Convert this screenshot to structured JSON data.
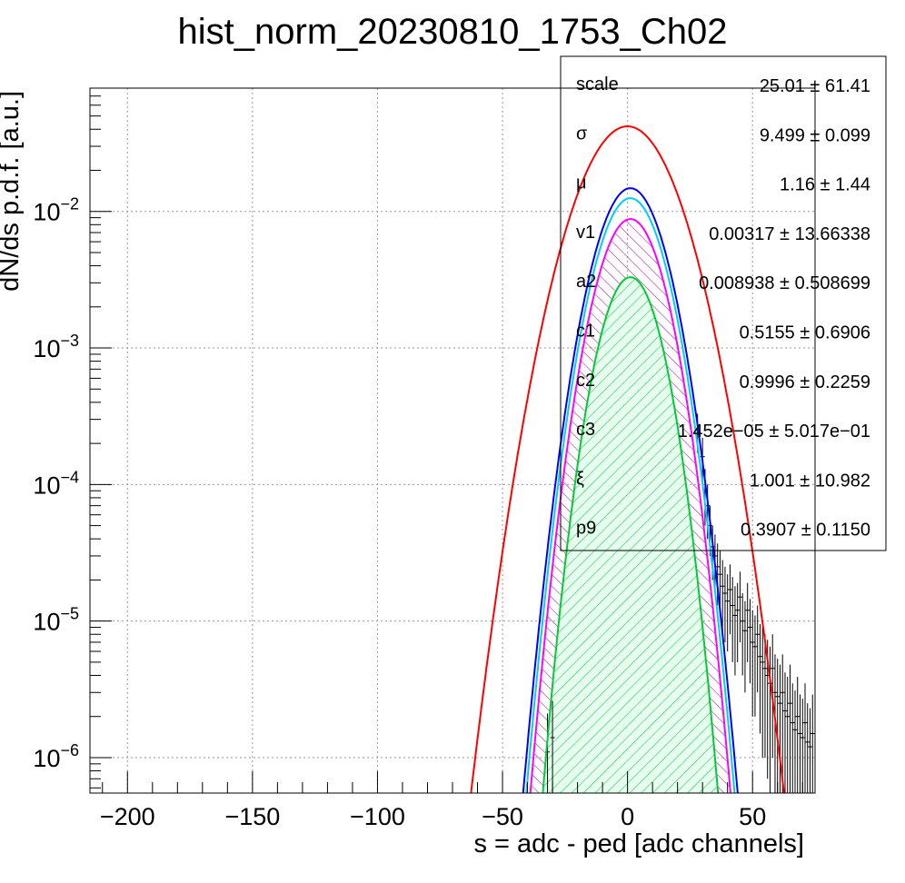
{
  "chart_data": {
    "type": "line",
    "title": "hist_norm_20230810_1753_Ch02",
    "xlabel": "s = adc - ped [adc channels]",
    "ylabel": "dN/ds p.d.f. [a.u.]",
    "xlim": [
      -215,
      75
    ],
    "ylim": [
      5.5e-07,
      0.08
    ],
    "yscale": "log",
    "grid": true,
    "x_ticks": [
      -200,
      -150,
      -100,
      -50,
      0,
      50
    ],
    "x_tick_labels": [
      "−200",
      "−150",
      "−100",
      "−50",
      "0",
      "50"
    ],
    "y_ticks": [
      {
        "value": 1e-06,
        "base": "10",
        "exp": "−6"
      },
      {
        "value": 1e-05,
        "base": "10",
        "exp": "−5"
      },
      {
        "value": 0.0001,
        "base": "10",
        "exp": "−4"
      },
      {
        "value": 0.001,
        "base": "10",
        "exp": "−3"
      },
      {
        "value": 0.01,
        "base": "10",
        "exp": "−2"
      }
    ],
    "curves": [
      {
        "color": "#ff0000",
        "peak": 0.042,
        "mu": 0,
        "sigma": 13.2,
        "fill": "none"
      },
      {
        "color": "#0000ff",
        "peak": 0.0148,
        "mu": 1.16,
        "sigma": 9.5,
        "fill": "none"
      },
      {
        "color": "#00ccff",
        "peak": 0.0125,
        "mu": 1.16,
        "sigma": 9.3,
        "fill": "none"
      },
      {
        "color": "#ff00ff",
        "peak": 0.0088,
        "mu": 1.16,
        "sigma": 9.1,
        "fill": "magenta-hatch"
      },
      {
        "color": "#00cc33",
        "peak": 0.0033,
        "mu": 1.16,
        "sigma": 8.4,
        "fill": "green-hatch"
      }
    ],
    "data_points": [
      {
        "x": 28,
        "y": 0.00025,
        "err": 8e-05
      },
      {
        "x": 30,
        "y": 0.00016,
        "err": 6e-05
      },
      {
        "x": 31,
        "y": 9e-05,
        "err": 4e-05
      },
      {
        "x": 32,
        "y": 7e-05,
        "err": 3e-05
      },
      {
        "x": 33,
        "y": 5e-05,
        "err": 2e-05
      },
      {
        "x": 34,
        "y": 3.5e-05,
        "err": 1.5e-05
      },
      {
        "x": 35,
        "y": 3e-05,
        "err": 1.3e-05
      },
      {
        "x": 36,
        "y": 2.5e-05,
        "err": 1.2e-05
      },
      {
        "x": 37,
        "y": 2.2e-05,
        "err": 1.1e-05
      },
      {
        "x": 38,
        "y": 1.8e-05,
        "err": 1e-05
      },
      {
        "x": 39,
        "y": 1.6e-05,
        "err": 9e-06
      },
      {
        "x": 40,
        "y": 1.4e-05,
        "err": 8e-06
      },
      {
        "x": 41,
        "y": 1.7e-05,
        "err": 9e-06
      },
      {
        "x": 42,
        "y": 1.3e-05,
        "err": 8e-06
      },
      {
        "x": 43,
        "y": 1.1e-05,
        "err": 7e-06
      },
      {
        "x": 44,
        "y": 1.2e-05,
        "err": 7e-06
      },
      {
        "x": 45,
        "y": 1.5e-05,
        "err": 8e-06
      },
      {
        "x": 46,
        "y": 1e-05,
        "err": 6e-06
      },
      {
        "x": 47,
        "y": 8.5e-06,
        "err": 5.5e-06
      },
      {
        "x": 48,
        "y": 1.2e-05,
        "err": 7e-06
      },
      {
        "x": 49,
        "y": 9e-06,
        "err": 5.5e-06
      },
      {
        "x": 50,
        "y": 7e-06,
        "err": 5e-06
      },
      {
        "x": 51,
        "y": 6.5e-06,
        "err": 4.5e-06
      },
      {
        "x": 52,
        "y": 8e-06,
        "err": 5e-06
      },
      {
        "x": 53,
        "y": 5.5e-06,
        "err": 4e-06
      },
      {
        "x": 54,
        "y": 5e-06,
        "err": 4e-06
      },
      {
        "x": 55,
        "y": 4.5e-06,
        "err": 3.5e-06
      },
      {
        "x": 56,
        "y": 4e-06,
        "err": 3.3e-06
      },
      {
        "x": 57,
        "y": 3.5e-06,
        "err": 3e-06
      },
      {
        "x": 58,
        "y": 4.5e-06,
        "err": 3.5e-06
      },
      {
        "x": 59,
        "y": 3e-06,
        "err": 2.7e-06
      },
      {
        "x": 60,
        "y": 2.8e-06,
        "err": 2.5e-06
      },
      {
        "x": 61,
        "y": 2.5e-06,
        "err": 2.3e-06
      },
      {
        "x": 62,
        "y": 3e-06,
        "err": 2.7e-06
      },
      {
        "x": 63,
        "y": 2.2e-06,
        "err": 2e-06
      },
      {
        "x": 64,
        "y": 2e-06,
        "err": 1.9e-06
      },
      {
        "x": 65,
        "y": 2.5e-06,
        "err": 2.3e-06
      },
      {
        "x": 66,
        "y": 1.8e-06,
        "err": 1.7e-06
      },
      {
        "x": 67,
        "y": 1.6e-06,
        "err": 1.5e-06
      },
      {
        "x": 68,
        "y": 2e-06,
        "err": 1.9e-06
      },
      {
        "x": 69,
        "y": 1.5e-06,
        "err": 1.4e-06
      },
      {
        "x": 70,
        "y": 1.4e-06,
        "err": 1.3e-06
      },
      {
        "x": 71,
        "y": 1.8e-06,
        "err": 1.7e-06
      },
      {
        "x": 72,
        "y": 1.3e-06,
        "err": 1.2e-06
      },
      {
        "x": 73,
        "y": 1.2e-06,
        "err": 1.1e-06
      },
      {
        "x": 74,
        "y": 1.5e-06,
        "err": 1.4e-06
      },
      {
        "x": -30,
        "y": 1.4e-06,
        "err": 1.2e-06
      },
      {
        "x": -32,
        "y": 1.1e-06,
        "err": 1e-06
      }
    ],
    "stats_box": {
      "rows": [
        {
          "name": "scale",
          "value": "25.01",
          "pm": "±",
          "err": "61.41"
        },
        {
          "name": "σ",
          "value": "9.499",
          "pm": "±",
          "err": "0.099"
        },
        {
          "name": "μ",
          "value": "1.16",
          "pm": "±",
          "err": "1.44"
        },
        {
          "name": "v1",
          "value": "0.00317",
          "pm": "±",
          "err": "13.66338"
        },
        {
          "name": "a2",
          "value": "0.008938",
          "pm": "±",
          "err": "0.508699"
        },
        {
          "name": "c1",
          "value": "0.5155",
          "pm": "±",
          "err": "0.6906"
        },
        {
          "name": "c2",
          "value": "0.9996",
          "pm": "±",
          "err": "0.2259"
        },
        {
          "name": "c3",
          "value": "1.452e−05",
          "pm": "±",
          "err": "5.017e−01"
        },
        {
          "name": "ξ",
          "value": "1.001",
          "pm": "±",
          "err": "10.982"
        },
        {
          "name": "p9",
          "value": "0.3907",
          "pm": "±",
          "err": "0.1150"
        }
      ]
    }
  }
}
